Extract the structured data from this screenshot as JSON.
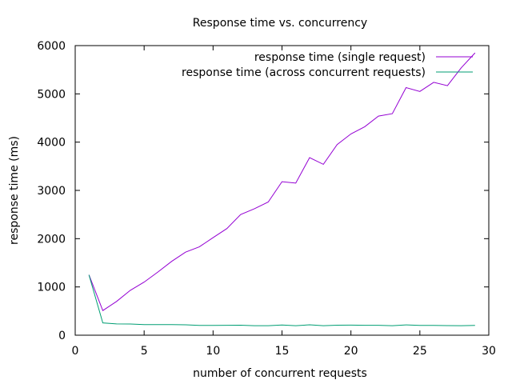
{
  "chart_data": {
    "type": "line",
    "title": "Response time vs. concurrency",
    "xlabel": "number of concurrent requests",
    "ylabel": "response time (ms)",
    "xlim": [
      0,
      30
    ],
    "ylim": [
      0,
      6000
    ],
    "xticks": [
      0,
      5,
      10,
      15,
      20,
      25,
      30
    ],
    "yticks": [
      0,
      1000,
      2000,
      3000,
      4000,
      5000,
      6000
    ],
    "grid": false,
    "legend_position": "top-right",
    "series": [
      {
        "name": "response time (single request)",
        "color": "#9400d3",
        "x": [
          1,
          2,
          3,
          4,
          5,
          6,
          7,
          8,
          9,
          10,
          11,
          12,
          13,
          14,
          15,
          16,
          17,
          18,
          19,
          20,
          21,
          22,
          23,
          24,
          25,
          26,
          27,
          28,
          29
        ],
        "y": [
          1250,
          510,
          700,
          930,
          1100,
          1310,
          1530,
          1720,
          1830,
          2020,
          2210,
          2500,
          2620,
          2760,
          3180,
          3150,
          3680,
          3540,
          3950,
          4170,
          4320,
          4540,
          4590,
          5130,
          5050,
          5240,
          5170,
          5540,
          5850
        ]
      },
      {
        "name": "response time (across concurrent requests)",
        "color": "#009e73",
        "x": [
          1,
          2,
          3,
          4,
          5,
          6,
          7,
          8,
          9,
          10,
          11,
          12,
          13,
          14,
          15,
          16,
          17,
          18,
          19,
          20,
          21,
          22,
          23,
          24,
          25,
          26,
          27,
          28,
          29
        ],
        "y": [
          1250,
          255,
          233,
          232,
          220,
          218,
          218,
          215,
          203,
          202,
          205,
          208,
          197,
          197,
          212,
          197,
          216,
          197,
          207,
          209,
          206,
          206,
          198,
          213,
          202,
          202,
          199,
          198,
          202
        ]
      }
    ]
  }
}
